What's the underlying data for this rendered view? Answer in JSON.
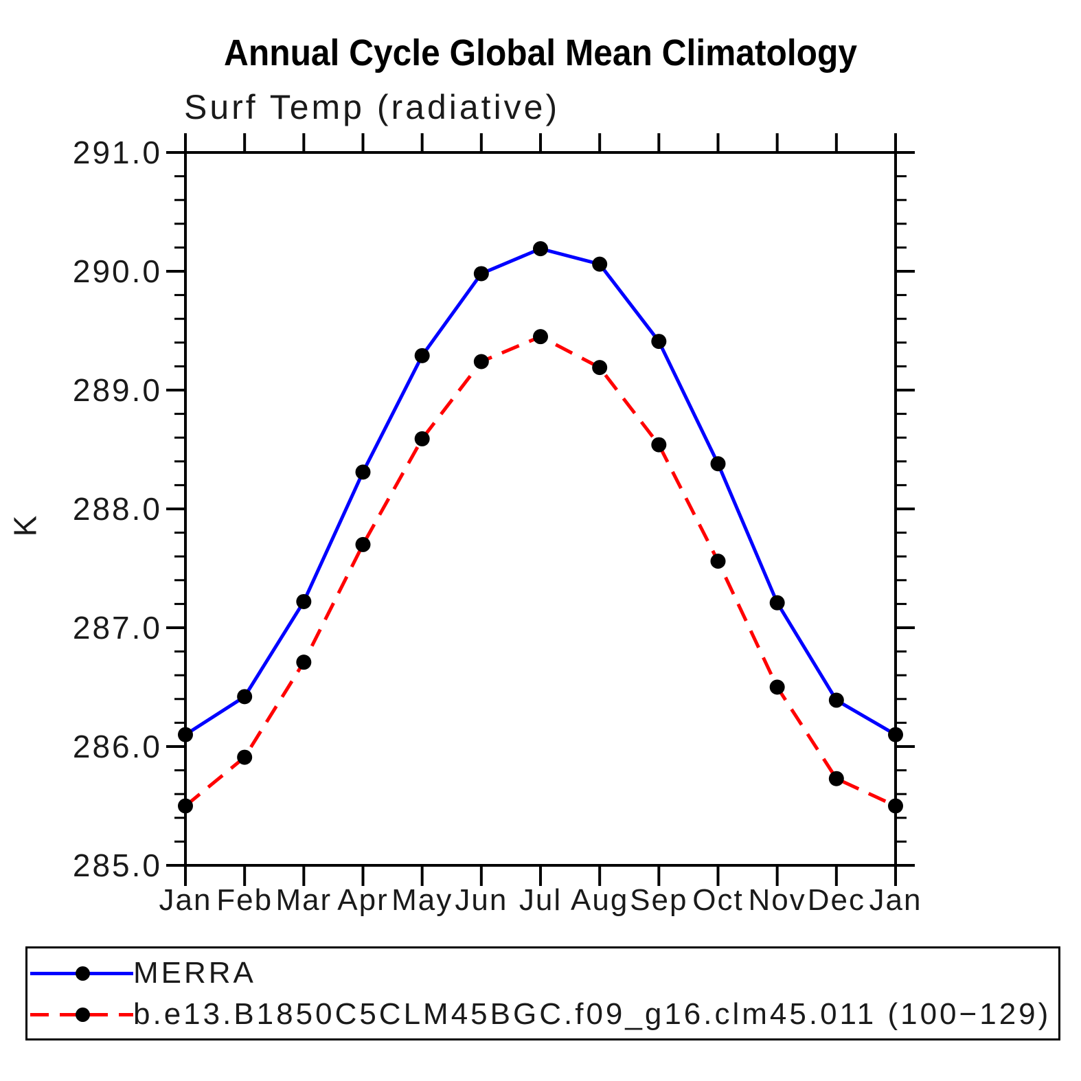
{
  "header": {
    "title": "Annual Cycle Global Mean Climatology",
    "subtitle": "Surf Temp (radiative)"
  },
  "chart_data": {
    "type": "line",
    "title": "Annual Cycle Global Mean Climatology",
    "subtitle": "Surf Temp (radiative)",
    "xlabel": "",
    "ylabel": "K",
    "categories": [
      "Jan",
      "Feb",
      "Mar",
      "Apr",
      "May",
      "Jun",
      "Jul",
      "Aug",
      "Sep",
      "Oct",
      "Nov",
      "Dec",
      "Jan"
    ],
    "ylim": [
      285.0,
      291.0
    ],
    "ytick_interval": 1.0,
    "yminor_interval": 0.2,
    "ytick_labels": [
      "285.0",
      "286.0",
      "287.0",
      "288.0",
      "289.0",
      "290.0",
      "291.0"
    ],
    "grid": false,
    "legend_position": "bottom-left-box",
    "axis_color": "#000000",
    "marker_color": "#000000",
    "series": [
      {
        "name": "MERRA",
        "color": "#0000ff",
        "style": "solid",
        "marker": "circle",
        "values": [
          286.1,
          286.42,
          287.22,
          288.31,
          289.29,
          289.98,
          290.19,
          290.06,
          289.41,
          288.38,
          287.21,
          286.39,
          286.1
        ]
      },
      {
        "name": "b.e13.B1850C5CLM45BGC.f09_g16.clm45.011 (100−129)",
        "color": "#ff0000",
        "style": "dashed",
        "marker": "circle",
        "values": [
          285.5,
          285.91,
          286.71,
          287.7,
          288.59,
          289.24,
          289.45,
          289.19,
          288.54,
          287.56,
          286.5,
          285.73,
          285.5
        ]
      }
    ]
  }
}
